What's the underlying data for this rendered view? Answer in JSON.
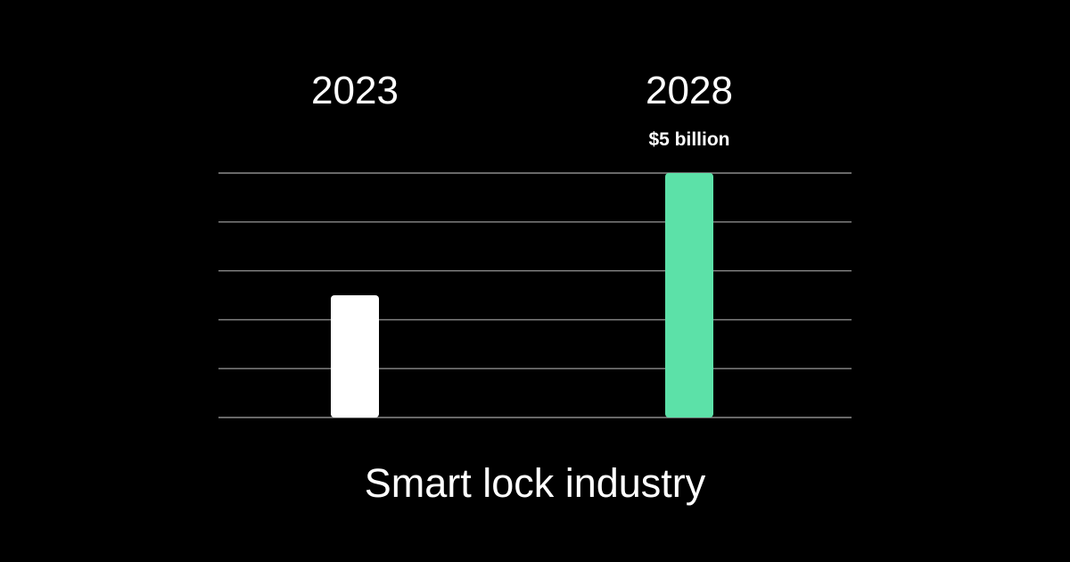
{
  "chart_data": {
    "type": "bar",
    "title": "Smart lock industry",
    "categories": [
      "2023",
      "2028"
    ],
    "series": [
      {
        "values": [
          2.5,
          5
        ],
        "colors": [
          "#ffffff",
          "#5ce1a8"
        ],
        "data_labels": [
          "",
          "$5 billion"
        ]
      }
    ],
    "ylim": [
      0,
      5
    ],
    "y_gridlines": [
      0,
      1,
      2,
      3,
      4,
      5
    ],
    "grid": true,
    "axis_tick_labels_shown": false,
    "legend": "none"
  },
  "colors": {
    "background": "#000000",
    "gridline": "#8a8a8a",
    "text": "#ffffff"
  }
}
